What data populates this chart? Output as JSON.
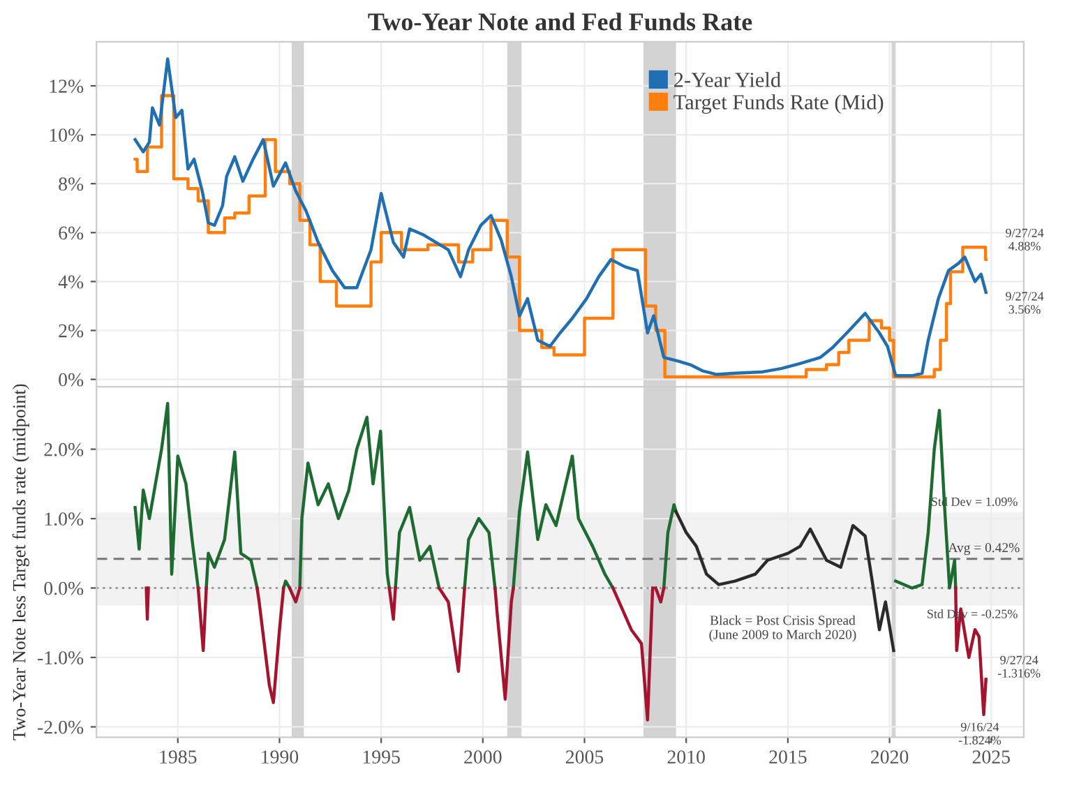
{
  "chart_data": [
    {
      "type": "line",
      "title": "Two-Year Note and Fed Funds Rate",
      "xlim": [
        1981.0,
        2026.6
      ],
      "xticks": [
        1985,
        1990,
        1995,
        2000,
        2005,
        2010,
        2015,
        2020,
        2025
      ],
      "ylim": [
        -0.3,
        13.8
      ],
      "yticks": [
        {
          "value": 0,
          "label": "0%"
        },
        {
          "value": 2,
          "label": "2%"
        },
        {
          "value": 4,
          "label": "4%"
        },
        {
          "value": 6,
          "label": "6%"
        },
        {
          "value": 8,
          "label": "8%"
        },
        {
          "value": 10,
          "label": "10%"
        },
        {
          "value": 12,
          "label": "12%"
        }
      ],
      "tick_labels": "y",
      "grid": true,
      "legend": "top right",
      "series": [
        {
          "name": "2-Year Yield",
          "type": "line",
          "color": "#1f6fb2",
          "x": [
            1982.9,
            1983.3,
            1983.6,
            1983.75,
            1984.1,
            1984.5,
            1984.9,
            1985.2,
            1985.5,
            1985.8,
            1986.2,
            1986.5,
            1986.8,
            1987.2,
            1987.4,
            1987.8,
            1988.2,
            1988.7,
            1989.2,
            1989.7,
            1990.3,
            1990.8,
            1991.3,
            1991.9,
            1992.6,
            1993.2,
            1993.8,
            1994.5,
            1995.0,
            1995.6,
            1996.1,
            1996.4,
            1997.1,
            1997.7,
            1998.3,
            1998.9,
            1999.3,
            1999.9,
            2000.4,
            2000.9,
            2001.4,
            2001.8,
            2002.2,
            2002.7,
            2003.3,
            2003.8,
            2004.4,
            2005.1,
            2005.7,
            2006.3,
            2007.0,
            2007.6,
            2008.1,
            2008.4,
            2008.9,
            2009.6,
            2010.2,
            2010.8,
            2011.5,
            2012.4,
            2013.7,
            2014.7,
            2015.6,
            2016.6,
            2017.2,
            2017.9,
            2018.8,
            2019.5,
            2019.9,
            2020.3,
            2021.1,
            2021.6,
            2021.9,
            2022.4,
            2022.9,
            2023.4,
            2023.7,
            2024.2,
            2024.5,
            2024.74
          ],
          "values": [
            9.8,
            9.3,
            9.7,
            11.1,
            10.4,
            13.1,
            10.7,
            11.0,
            8.6,
            9.0,
            7.7,
            6.4,
            6.3,
            7.1,
            8.3,
            9.1,
            8.1,
            9.0,
            9.8,
            7.9,
            8.85,
            7.7,
            6.9,
            5.6,
            4.45,
            3.75,
            3.75,
            5.3,
            7.6,
            5.6,
            5.0,
            6.15,
            5.9,
            5.6,
            5.3,
            4.2,
            5.3,
            6.3,
            6.7,
            5.7,
            4.2,
            2.6,
            3.3,
            1.6,
            1.35,
            1.9,
            2.5,
            3.3,
            4.2,
            4.9,
            4.6,
            4.45,
            1.9,
            2.6,
            0.9,
            0.75,
            0.6,
            0.35,
            0.2,
            0.25,
            0.3,
            0.45,
            0.65,
            0.9,
            1.3,
            1.9,
            2.7,
            1.9,
            1.35,
            0.15,
            0.15,
            0.25,
            1.6,
            3.3,
            4.45,
            4.75,
            5.0,
            4.0,
            4.3,
            3.56
          ]
        },
        {
          "name": "Target Funds Rate (Mid)",
          "type": "step",
          "color": "#ff7f0e",
          "x": [
            1982.9,
            1983.0,
            1983.5,
            1984.2,
            1984.8,
            1985.5,
            1986.0,
            1986.5,
            1987.3,
            1987.8,
            1988.5,
            1989.3,
            1989.8,
            1990.5,
            1991.0,
            1991.5,
            1992.0,
            1992.8,
            1994.0,
            1994.5,
            1995.0,
            1996.0,
            1997.3,
            1998.8,
            1999.5,
            2000.4,
            2001.2,
            2001.8,
            2002.9,
            2003.5,
            2004.5,
            2005.0,
            2006.4,
            2007.7,
            2008.0,
            2008.5,
            2008.95,
            2015.9,
            2016.9,
            2017.5,
            2018.0,
            2019.0,
            2019.6,
            2020.0,
            2020.2,
            2022.2,
            2022.5,
            2022.8,
            2023.0,
            2023.6,
            2024.72,
            2024.74
          ],
          "values": [
            9.0,
            8.5,
            9.5,
            11.6,
            8.2,
            7.8,
            7.3,
            6.0,
            6.6,
            6.8,
            7.5,
            9.8,
            8.5,
            8.0,
            6.5,
            5.5,
            4.0,
            3.0,
            3.0,
            4.8,
            6.0,
            5.3,
            5.5,
            4.8,
            5.3,
            6.5,
            5.0,
            2.0,
            1.3,
            1.0,
            1.0,
            2.5,
            5.3,
            5.3,
            3.0,
            2.0,
            0.1,
            0.4,
            0.6,
            1.1,
            1.6,
            2.4,
            2.1,
            1.6,
            0.1,
            0.4,
            1.6,
            3.1,
            4.4,
            5.4,
            4.9,
            4.9
          ]
        }
      ],
      "bands": [
        {
          "axis": "x",
          "from": 1990.6,
          "to": 1991.2,
          "color": "#d3d3d3"
        },
        {
          "axis": "x",
          "from": 2001.2,
          "to": 2001.9,
          "color": "#d3d3d3"
        },
        {
          "axis": "x",
          "from": 2007.9,
          "to": 2009.5,
          "color": "#d3d3d3"
        },
        {
          "axis": "x",
          "from": 2020.1,
          "to": 2020.3,
          "color": "#d3d3d3"
        }
      ],
      "annotations": [
        {
          "text": "9/27/24\n4.88%",
          "x": 2024.74,
          "y": 4.88
        },
        {
          "text": "9/27/24\n3.56%",
          "x": 2024.74,
          "y": 3.56
        }
      ]
    },
    {
      "type": "line",
      "ylabel": "Two-Year Note less Target funds rate (midpoint)",
      "xlim": [
        1981.0,
        2026.6
      ],
      "xticks": [
        1985,
        1990,
        1995,
        2000,
        2005,
        2010,
        2015,
        2020,
        2025
      ],
      "ylim": [
        -2.15,
        2.9
      ],
      "yticks": [
        {
          "value": -2,
          "label": "-2.0%"
        },
        {
          "value": -1,
          "label": "-1.0%"
        },
        {
          "value": 0,
          "label": "0.0%"
        },
        {
          "value": 1,
          "label": "1.0%"
        },
        {
          "value": 2,
          "label": "2.0%"
        }
      ],
      "grid": true,
      "series": [
        {
          "color": "#1e6b31",
          "x": [
            1982.9,
            1983.1,
            1983.3,
            1983.6,
            1983.9,
            1984.2,
            1984.5,
            1984.7,
            1985.0,
            1985.4,
            1985.7,
            1986.0,
            1986.1,
            1986.4,
            1986.5,
            1986.8,
            1987.3,
            1987.8,
            1988.1,
            1988.6,
            1988.9,
            1989.0,
            1990.2,
            1990.3,
            1990.5,
            1990.6,
            1991.0,
            1991.1,
            1991.4,
            1991.9,
            1992.4,
            1992.9,
            1993.4,
            1993.8,
            1994.3,
            1994.6,
            1994.97,
            1995.3,
            1995.4,
            1995.5,
            1995.7,
            1995.9,
            1996.4,
            1996.9,
            1997.4,
            1997.85,
            1998.0,
            1999.1,
            1999.3,
            1999.8,
            2000.3,
            2000.6,
            2000.65,
            2001.5,
            2001.8,
            2002.2,
            2002.7,
            2003.1,
            2003.6,
            2004.4,
            2004.7,
            2005.4,
            2006.0,
            2006.4,
            2006.5,
            2008.9,
            2009.1,
            2009.4,
            2009.5,
            2009.6,
            2020.3,
            2021.1,
            2021.6,
            2021.9,
            2022.2,
            2022.45,
            2022.7,
            2022.95,
            2023.2,
            2023.25
          ],
          "values": [
            1.16,
            0.56,
            1.41,
            1.0,
            1.5,
            2.0,
            2.66,
            0.2,
            1.9,
            1.5,
            0.7,
            0.0,
            null,
            0.0,
            0.5,
            0.3,
            0.7,
            1.96,
            0.5,
            0.4,
            0.0,
            null,
            0.0,
            0.1,
            0.0,
            null,
            0.0,
            1.0,
            1.8,
            1.2,
            1.5,
            1.0,
            1.4,
            2.0,
            2.46,
            1.5,
            2.26,
            0.2,
            0.0,
            null,
            0.0,
            0.8,
            1.16,
            0.4,
            0.6,
            0.0,
            null,
            0.0,
            0.7,
            1.0,
            0.8,
            0.0,
            null,
            0.0,
            1.1,
            1.96,
            0.7,
            1.2,
            0.9,
            1.9,
            1.0,
            0.6,
            0.2,
            0.0,
            null,
            0.0,
            0.8,
            1.2,
            1.1,
            null,
            0.1,
            0.0,
            0.05,
            0.8,
            2.0,
            2.56,
            1.2,
            0.0,
            0.4,
            0.0
          ]
        },
        {
          "color": "#a5142f",
          "x": [
            1983.45,
            1983.5,
            1983.55,
            1983.6,
            1986.0,
            1986.25,
            1986.4,
            1986.45,
            1988.9,
            1989.0,
            1989.5,
            1989.7,
            1990.0,
            1990.2,
            1990.25,
            1990.5,
            1990.8,
            1991.0,
            1991.05,
            1995.4,
            1995.6,
            1995.7,
            1995.75,
            1997.85,
            1998.3,
            1998.8,
            1999.1,
            1999.15,
            2000.6,
            2000.7,
            2001.1,
            2001.4,
            2001.5,
            2001.55,
            2006.4,
            2006.7,
            2007.3,
            2007.8,
            2008.1,
            2008.35,
            2008.4,
            2008.5,
            2008.75,
            2008.9,
            2008.95,
            2023.25,
            2023.3,
            2023.5,
            2023.9,
            2024.2,
            2024.4,
            2024.63,
            2024.74
          ],
          "values": [
            0.0,
            -0.45,
            0.0,
            null,
            0.0,
            -0.9,
            0.0,
            null,
            0.0,
            -0.2,
            -1.4,
            -1.65,
            -0.6,
            0.0,
            null,
            0.0,
            -0.2,
            0.0,
            null,
            0.0,
            -0.45,
            0.0,
            null,
            0.0,
            -0.2,
            -1.2,
            0.0,
            null,
            0.0,
            -0.35,
            -1.6,
            -0.2,
            0.0,
            null,
            0.0,
            -0.2,
            -0.6,
            -0.8,
            -1.9,
            0.0,
            null,
            0.0,
            -0.2,
            0.0,
            null,
            0.0,
            -0.9,
            -0.3,
            -1.0,
            -0.6,
            -0.7,
            -1.824,
            -1.316
          ]
        },
        {
          "color": "#2b2b2b",
          "x": [
            2009.5,
            2010.0,
            2010.5,
            2011.0,
            2011.6,
            2012.4,
            2013.4,
            2014.0,
            2015.0,
            2015.6,
            2016.1,
            2016.9,
            2017.6,
            2018.2,
            2018.8,
            2019.2,
            2019.5,
            2019.8,
            2020.2
          ],
          "values": [
            1.1,
            0.8,
            0.6,
            0.2,
            0.05,
            0.1,
            0.2,
            0.4,
            0.5,
            0.6,
            0.85,
            0.4,
            0.3,
            0.9,
            0.75,
            0.0,
            -0.6,
            -0.2,
            -0.9
          ]
        }
      ],
      "bands": [
        {
          "axis": "y",
          "from": -0.25,
          "to": 1.09,
          "color": "#f2f2f2"
        },
        {
          "axis": "x",
          "from": 1990.6,
          "to": 1991.2,
          "color": "#d3d3d3"
        },
        {
          "axis": "x",
          "from": 2001.2,
          "to": 2001.9,
          "color": "#d3d3d3"
        },
        {
          "axis": "x",
          "from": 2007.9,
          "to": 2009.5,
          "color": "#d3d3d3"
        },
        {
          "axis": "x",
          "from": 2020.1,
          "to": 2020.3,
          "color": "#d3d3d3"
        }
      ],
      "ref_lines": [
        {
          "axis": "y",
          "value": 0.42,
          "label": "Avg = 0.42%",
          "color": "#777777",
          "line_style": "dashed"
        },
        {
          "axis": "y",
          "value": 0.0,
          "color": "#999999",
          "line_style": "dotted"
        }
      ],
      "annotations": [
        {
          "text": "Std Dev = 1.09%",
          "x": 2026.5,
          "y": 1.09
        },
        {
          "text": "Std Dev = -0.25%",
          "x": 2026.5,
          "y": -0.25
        },
        "Black = Post Crisis Spread\n(June 2009 to March 2020)",
        {
          "text": "9/27/24\n-1.316%",
          "x": 2024.74,
          "y": -1.316
        },
        {
          "text": "9/16/24\n-1.824%",
          "x": 2024.63,
          "y": -1.824
        }
      ]
    }
  ]
}
